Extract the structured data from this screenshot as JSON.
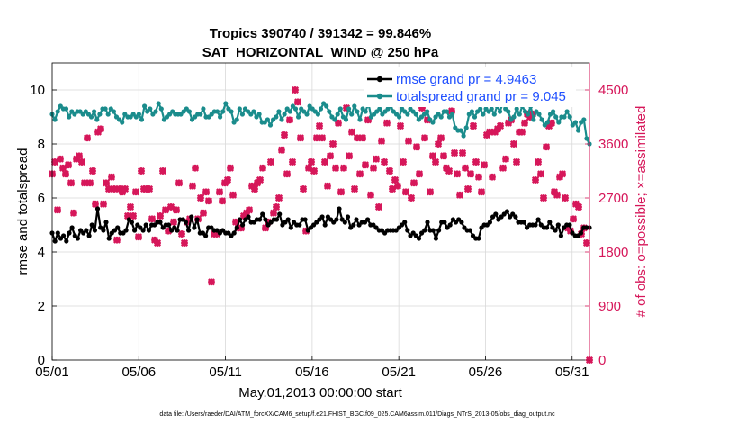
{
  "chart_data": {
    "type": "line",
    "title": "Tropics 390740 / 391342 = 99.846%",
    "subtitle": "SAT_HORIZONTAL_WIND @ 250 hPa",
    "xlabel": "May.01,2013 00:00:00 start",
    "ylabel": "rmse and totalspread",
    "y2label": "# of obs: o=possible; ×=assimilated",
    "footnote": "data file: /Users/raeder/DAI/ATM_forcXX/CAM6_setup/f.e21.FHIST_BGC.f09_025.CAM6assim.011/Diags_NTrS_2013-05/obs_diag_output.nc",
    "xlim": [
      1,
      32
    ],
    "ylim": [
      0,
      11
    ],
    "y2lim": [
      0,
      4950
    ],
    "xticks": [
      1,
      6,
      11,
      16,
      21,
      26,
      31
    ],
    "xtick_labels": [
      "05/01",
      "05/06",
      "05/11",
      "05/16",
      "05/21",
      "05/26",
      "05/31"
    ],
    "yticks": [
      0,
      2,
      4,
      6,
      8,
      10
    ],
    "ytick_labels": [
      "0",
      "2",
      "4",
      "6",
      "8",
      "10"
    ],
    "y2ticks": [
      0,
      900,
      1800,
      2700,
      3600,
      4500
    ],
    "y2tick_labels": [
      "0",
      "900",
      "1800",
      "2700",
      "3600",
      "4500"
    ],
    "grid": true,
    "legend_position": "top-right",
    "series": [
      {
        "name": "rmse grand pr = 4.9463",
        "color": "#000000",
        "marker": "circle",
        "axis": "left",
        "values": [
          4.7,
          4.4,
          4.7,
          4.5,
          4.6,
          4.4,
          4.7,
          4.9,
          4.6,
          4.5,
          4.8,
          4.7,
          4.8,
          4.6,
          5.0,
          4.8,
          5.6,
          4.9,
          4.8,
          5.1,
          4.5,
          4.7,
          4.8,
          4.9,
          4.7,
          4.7,
          4.8,
          5.2,
          5.1,
          4.8,
          5.0,
          4.9,
          4.8,
          5.0,
          4.8,
          5.0,
          5.0,
          5.1,
          5.1,
          4.9,
          5.0,
          5.0,
          4.8,
          4.9,
          4.8,
          5.2,
          5.2,
          5.1,
          4.8,
          5.3,
          4.9,
          5.2,
          4.7,
          4.7,
          4.6,
          4.9,
          4.9,
          4.8,
          4.8,
          4.7,
          4.8,
          4.7,
          4.7,
          4.6,
          4.7,
          4.9,
          5.2,
          5.0,
          5.2,
          5.3,
          5.1,
          5.1,
          5.2,
          5.2,
          5.4,
          5.2,
          5.0,
          5.1,
          5.2,
          5.2,
          5.4,
          5.0,
          5.1,
          5.2,
          4.9,
          5.1,
          5.0,
          5.0,
          5.2,
          5.2,
          4.8,
          4.9,
          5.0,
          5.1,
          5.2,
          5.3,
          5.0,
          5.3,
          5.2,
          5.1,
          5.2,
          5.6,
          5.2,
          5.1,
          5.3,
          4.9,
          5.0,
          5.2,
          5.0,
          5.1,
          5.1,
          5.2,
          5.0,
          5.0,
          4.9,
          4.8,
          4.8,
          4.7,
          4.8,
          4.8,
          4.8,
          4.8,
          4.9,
          5.0,
          5.1,
          4.8,
          4.6,
          4.7,
          4.6,
          4.5,
          4.7,
          4.8,
          5.1,
          4.8,
          4.8,
          4.5,
          4.8,
          5.1,
          5.1,
          4.9,
          5.0,
          5.2,
          5.1,
          5.2,
          5.1,
          4.9,
          4.8,
          4.8,
          4.6,
          4.5,
          4.5,
          4.9,
          5.0,
          5.0,
          5.1,
          5.3,
          5.4,
          5.2,
          5.3,
          5.4,
          5.5,
          5.3,
          5.4,
          5.3,
          5.1,
          5.1,
          5.1,
          4.9,
          5.0,
          5.0,
          5.0,
          5.2,
          5.0,
          4.9,
          4.9,
          5.1,
          4.9,
          4.8,
          5.0,
          4.6,
          4.9,
          5.0,
          5.0,
          4.7,
          4.6,
          4.6,
          4.7,
          4.9,
          4.9,
          4.9
        ]
      },
      {
        "name": "totalspread grand pr = 9.045",
        "color": "#1a8c8c",
        "marker": "circle",
        "axis": "left",
        "values": [
          9.1,
          8.9,
          9.2,
          9.4,
          9.3,
          9.3,
          9.0,
          9.2,
          9.1,
          9.2,
          9.2,
          9.1,
          9.2,
          9.1,
          9.0,
          9.2,
          8.9,
          9.1,
          9.3,
          9.3,
          9.1,
          9.3,
          9.2,
          9.0,
          8.9,
          8.8,
          9.1,
          9.0,
          9.0,
          9.1,
          9.0,
          9.1,
          8.9,
          9.4,
          9.2,
          9.3,
          9.1,
          9.2,
          9.5,
          9.3,
          8.9,
          9.0,
          9.1,
          9.2,
          9.1,
          9.1,
          9.1,
          9.2,
          9.3,
          9.2,
          8.9,
          9.0,
          9.1,
          9.1,
          9.3,
          9.0,
          9.0,
          9.1,
          9.2,
          9.2,
          9.0,
          9.2,
          9.5,
          9.3,
          9.2,
          8.8,
          8.9,
          9.3,
          9.1,
          9.3,
          9.2,
          9.1,
          9.2,
          9.0,
          9.1,
          8.8,
          8.8,
          8.9,
          8.7,
          8.9,
          9.0,
          9.2,
          8.9,
          9.1,
          9.3,
          9.2,
          9.4,
          9.3,
          9.0,
          9.3,
          9.2,
          9.1,
          9.4,
          9.3,
          9.2,
          9.1,
          9.3,
          9.5,
          9.4,
          9.2,
          9.0,
          8.9,
          9.1,
          9.3,
          9.0,
          8.9,
          9.3,
          9.1,
          9.4,
          9.2,
          8.9,
          9.3,
          9.2,
          9.5,
          9.0,
          9.1,
          9.2,
          9.3,
          9.1,
          9.2,
          9.3,
          9.4,
          9.2,
          9.1,
          9.0,
          9.3,
          9.2,
          9.1,
          9.3,
          9.2,
          9.1,
          8.9,
          9.0,
          9.1,
          9.2,
          8.9,
          8.8,
          9.0,
          9.1,
          9.0,
          9.2,
          9.2,
          9.0,
          9.1,
          8.6,
          8.5,
          8.5,
          8.3,
          8.6,
          9.1,
          9.2,
          9.0,
          9.2,
          9.3,
          9.1,
          9.3,
          9.2,
          9.3,
          9.1,
          9.4,
          9.2,
          9.5,
          9.3,
          9.2,
          8.9,
          9.0,
          9.3,
          9.1,
          9.4,
          9.2,
          9.1,
          9.4,
          8.9,
          9.2,
          9.1,
          8.9,
          8.7,
          8.8,
          9.1,
          9.2,
          9.0,
          8.8,
          9.0,
          9.0,
          9.2,
          9.0,
          8.7,
          8.8,
          8.5,
          8.8,
          8.9,
          8.2,
          8.0
        ]
      }
    ],
    "obs_series": {
      "name": "assimilated observations",
      "color": "#d6175a",
      "marker": "x",
      "axis": "right",
      "values": [
        3100,
        3300,
        2500,
        3350,
        3200,
        3100,
        3250,
        2950,
        2450,
        3350,
        3400,
        3300,
        2950,
        3700,
        2950,
        3150,
        2600,
        3800,
        3850,
        2600,
        2950,
        2850,
        3050,
        2850,
        2000,
        2850,
        2800,
        2850,
        2400,
        2550,
        2400,
        2800,
        2050,
        3150,
        2850,
        2850,
        2850,
        2350,
        2000,
        1950,
        2400,
        3150,
        2500,
        2150,
        2550,
        2300,
        2500,
        2950,
        2100,
        1950,
        2300,
        2350,
        2900,
        3200,
        2350,
        2700,
        2450,
        2800,
        2650,
        1300,
        2100,
        2100,
        2800,
        2650,
        2950,
        3000,
        3200,
        2750,
        2300,
        2200,
        2200,
        2400,
        2450,
        2500,
        2900,
        2850,
        2950,
        3000,
        3200,
        2200,
        2300,
        3300,
        2450,
        2550,
        2700,
        3500,
        3750,
        3100,
        4000,
        3300,
        4500,
        4300,
        3700,
        2850,
        2150,
        3200,
        3300,
        3150,
        3700,
        3900,
        3700,
        3300,
        2900,
        3400,
        3600,
        3200,
        3950,
        2800,
        3200,
        4200,
        3400,
        3800,
        2850,
        3700,
        3100,
        3700,
        3250,
        4000,
        2750,
        3200,
        3350,
        2550,
        3650,
        3300,
        3950,
        3150,
        2850,
        3000,
        2900,
        3900,
        3300,
        2800,
        3650,
        2700,
        2950,
        3550,
        3100,
        4200,
        3700,
        4000,
        2800,
        3400,
        3300,
        3600,
        3700,
        3400,
        3200,
        3150,
        4150,
        3450,
        3100,
        2750,
        3450,
        3200,
        2850,
        3100,
        3900,
        3300,
        3050,
        2800,
        3250,
        3750,
        3800,
        3050,
        3800,
        3850,
        3900,
        3200,
        3350,
        3950,
        4000,
        3600,
        3300,
        3800,
        3800,
        3950,
        4100,
        4050,
        4100,
        3000,
        3300,
        3100,
        2700,
        3550,
        3900,
        3950,
        2800,
        2750,
        3050,
        3100,
        2700,
        2200,
        2150,
        2350,
        2600,
        2550,
        2100,
        2200,
        1950,
        0
      ]
    }
  }
}
